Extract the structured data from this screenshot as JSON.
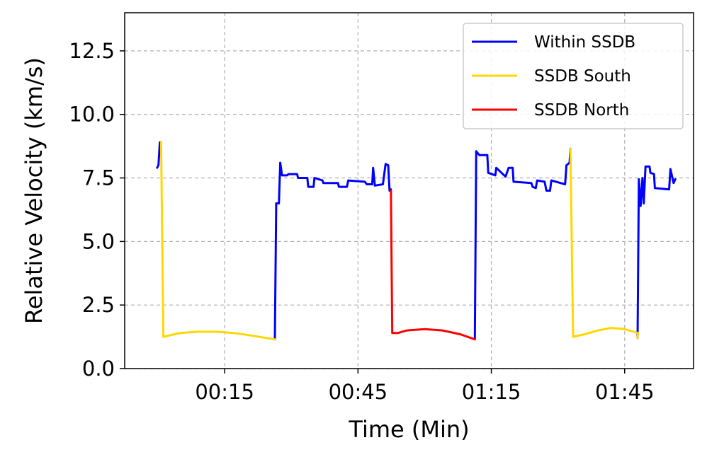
{
  "chart_data": {
    "type": "line",
    "title": "",
    "xlabel": "Time (Min)",
    "ylabel": "Relative Velocity (km/s)",
    "xlim": [
      -7.5,
      120.5
    ],
    "ylim": [
      0,
      14
    ],
    "x_ticks": [
      15,
      45,
      75,
      105
    ],
    "x_tick_labels": [
      "00:15",
      "00:45",
      "01:15",
      "01:45"
    ],
    "y_ticks": [
      0.0,
      2.5,
      5.0,
      7.5,
      10.0,
      12.5
    ],
    "y_tick_labels": [
      "0.0",
      "2.5",
      "5.0",
      "7.5",
      "10.0",
      "12.5"
    ],
    "grid": true,
    "legend_position": "top-right",
    "series": [
      {
        "name": "Within SSDB",
        "color": "#0000ff",
        "segments": [
          [
            [
              -0.2,
              7.9
            ],
            [
              0.1,
              8.0
            ],
            [
              0.4,
              8.9
            ],
            [
              0.7,
              8.9
            ]
          ],
          [
            [
              26.3,
              1.15
            ],
            [
              26.6,
              6.5
            ],
            [
              27.2,
              6.5
            ],
            [
              27.5,
              8.1
            ],
            [
              27.9,
              7.6
            ],
            [
              29,
              7.6
            ],
            [
              29.4,
              7.65
            ],
            [
              31.3,
              7.65
            ],
            [
              31.5,
              7.5
            ],
            [
              33.6,
              7.5
            ],
            [
              33.8,
              7.15
            ],
            [
              35,
              7.15
            ],
            [
              35.2,
              7.5
            ],
            [
              37,
              7.4
            ],
            [
              37.2,
              7.3
            ],
            [
              40.5,
              7.3
            ],
            [
              40.7,
              7.15
            ],
            [
              42.5,
              7.15
            ],
            [
              42.8,
              7.4
            ],
            [
              46.5,
              7.35
            ],
            [
              47,
              7.25
            ],
            [
              48.2,
              7.25
            ],
            [
              48.4,
              7.9
            ],
            [
              48.8,
              7.2
            ],
            [
              50.6,
              7.25
            ],
            [
              51.2,
              8.05
            ],
            [
              51.8,
              8.0
            ],
            [
              52.1,
              7.0
            ],
            [
              52.4,
              7.05
            ]
          ],
          [
            [
              71.3,
              1.15
            ],
            [
              71.6,
              8.55
            ],
            [
              72.3,
              8.4
            ],
            [
              74.1,
              8.4
            ],
            [
              74.3,
              7.7
            ],
            [
              75.9,
              7.6
            ],
            [
              76.1,
              7.9
            ],
            [
              78.2,
              7.55
            ],
            [
              78.9,
              7.9
            ],
            [
              79.8,
              7.9
            ],
            [
              80,
              7.35
            ],
            [
              84,
              7.3
            ],
            [
              84.3,
              7.15
            ],
            [
              85,
              7.1
            ],
            [
              85.3,
              7.4
            ],
            [
              87,
              7.35
            ],
            [
              87.4,
              7.0
            ],
            [
              88.2,
              7.0
            ],
            [
              88.5,
              7.4
            ],
            [
              91.6,
              7.25
            ],
            [
              91.9,
              8.0
            ],
            [
              92.6,
              8.1
            ],
            [
              92.8,
              8.65
            ]
          ],
          [
            [
              107.9,
              1.2
            ],
            [
              108.2,
              7.45
            ],
            [
              108.6,
              6.4
            ],
            [
              109,
              7.5
            ],
            [
              109.3,
              6.5
            ],
            [
              109.7,
              7.95
            ],
            [
              110.6,
              7.95
            ],
            [
              110.8,
              7.7
            ],
            [
              111.6,
              7.65
            ],
            [
              111.8,
              7.1
            ],
            [
              115,
              7.05
            ],
            [
              115.3,
              7.85
            ],
            [
              116,
              7.3
            ],
            [
              116.4,
              7.45
            ]
          ]
        ]
      },
      {
        "name": "SSDB South",
        "color": "#ffd700",
        "segments": [
          [
            [
              0.7,
              8.9
            ],
            [
              1.2,
              1.25
            ],
            [
              5,
              1.4
            ],
            [
              9,
              1.45
            ],
            [
              13,
              1.45
            ],
            [
              17,
              1.4
            ],
            [
              21,
              1.3
            ],
            [
              26.3,
              1.15
            ]
          ],
          [
            [
              92.8,
              8.65
            ],
            [
              93.4,
              1.25
            ],
            [
              96,
              1.35
            ],
            [
              99,
              1.5
            ],
            [
              102,
              1.6
            ],
            [
              105,
              1.55
            ],
            [
              108,
              1.4
            ],
            [
              107.9,
              1.2
            ]
          ]
        ]
      },
      {
        "name": "SSDB North",
        "color": "#ff0000",
        "segments": [
          [
            [
              52.4,
              7.0
            ],
            [
              52.7,
              1.4
            ],
            [
              54,
              1.4
            ],
            [
              56,
              1.5
            ],
            [
              60,
              1.55
            ],
            [
              64,
              1.5
            ],
            [
              68,
              1.35
            ],
            [
              71.3,
              1.15
            ]
          ]
        ]
      }
    ]
  }
}
